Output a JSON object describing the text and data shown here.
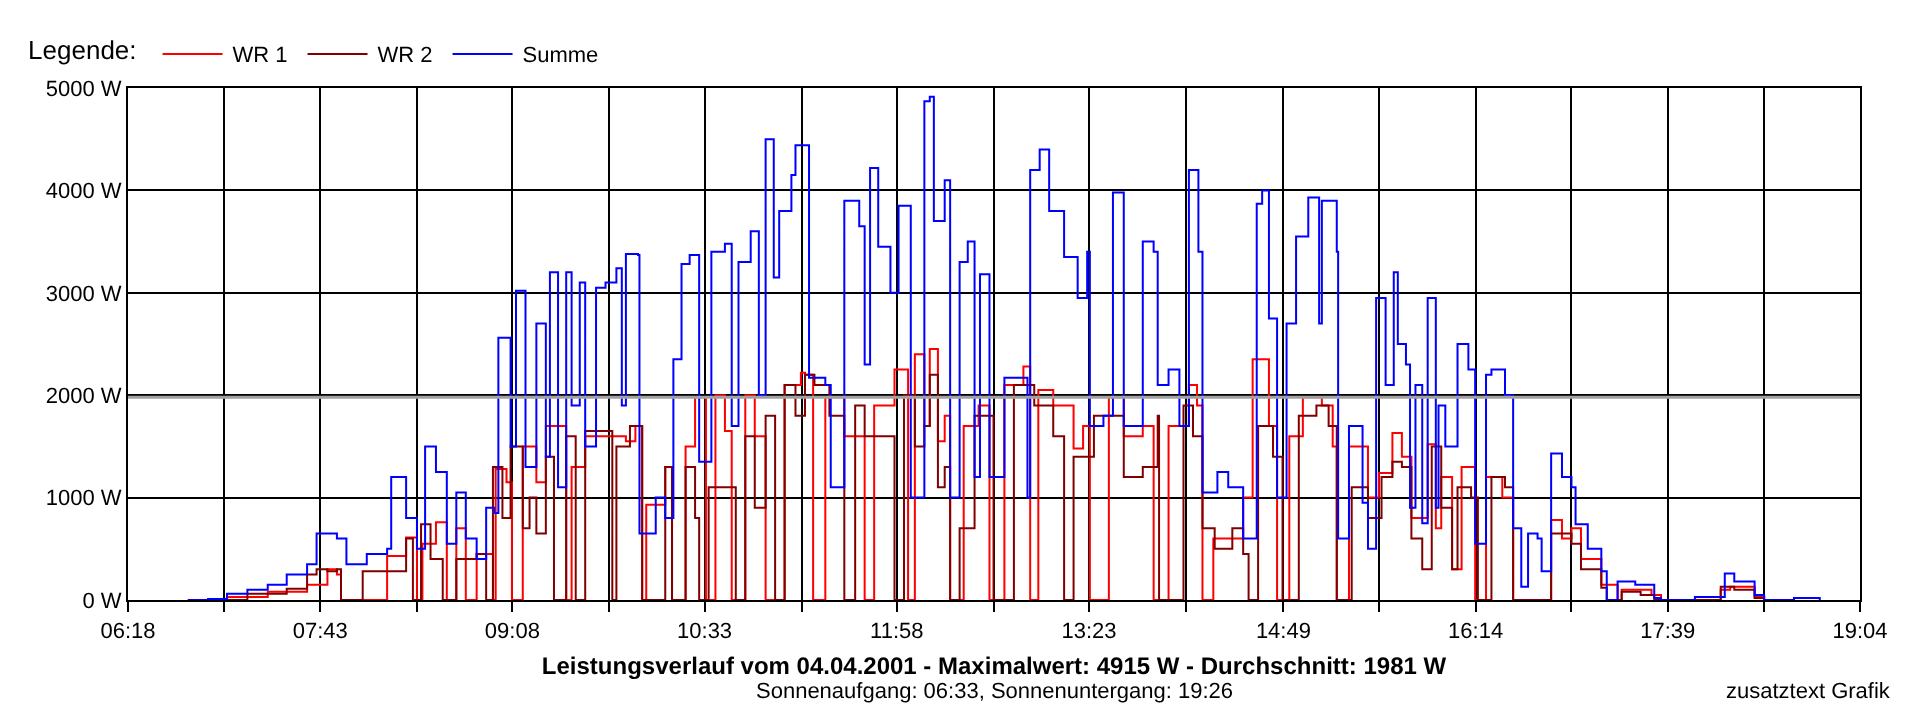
{
  "chart_data": {
    "type": "step",
    "title": "Leistungsverlauf vom 04.04.2001 - Maximalwert: 4915 W - Durchschnitt: 1981 W",
    "subtitle": "Sonnenaufgang: 06:33, Sonnenuntergang: 19:26",
    "legend_title": "Legende:",
    "annotations": [
      "zusatztext Grafik"
    ],
    "xlim": [
      6.3,
      19.0667
    ],
    "xticks": [
      {
        "value": 6.3,
        "label": "06:18"
      },
      {
        "value": 7.0093,
        "label": null
      },
      {
        "value": 7.7167,
        "label": "07:43"
      },
      {
        "value": 8.4278,
        "label": null
      },
      {
        "value": 9.1333,
        "label": "09:08"
      },
      {
        "value": 9.8463,
        "label": null
      },
      {
        "value": 10.55,
        "label": "10:33"
      },
      {
        "value": 11.2648,
        "label": null
      },
      {
        "value": 11.9667,
        "label": "11:58"
      },
      {
        "value": 12.6833,
        "label": null
      },
      {
        "value": 13.3833,
        "label": "13:23"
      },
      {
        "value": 14.1019,
        "label": null
      },
      {
        "value": 14.8167,
        "label": "14:49"
      },
      {
        "value": 15.5204,
        "label": null
      },
      {
        "value": 16.2333,
        "label": "16:14"
      },
      {
        "value": 16.9389,
        "label": null
      },
      {
        "value": 17.65,
        "label": "17:39"
      },
      {
        "value": 18.3574,
        "label": null
      },
      {
        "value": 19.0667,
        "label": "19:04"
      }
    ],
    "ylim": [
      0,
      5000
    ],
    "yticks": [
      {
        "value": 0,
        "label": "0 W"
      },
      {
        "value": 1000,
        "label": "1000 W"
      },
      {
        "value": 2000,
        "label": "2000 W"
      },
      {
        "value": 3000,
        "label": "3000 W"
      },
      {
        "value": 4000,
        "label": "4000 W"
      },
      {
        "value": 5000,
        "label": "5000 W"
      }
    ],
    "grid": true,
    "legend": "top left",
    "marker": "none",
    "line_style": "solid",
    "ref_lines": [
      {
        "axis": "y",
        "value": 1981,
        "color": "#a0a0a0"
      }
    ],
    "series": [
      {
        "name": "WR 1",
        "color": "#ff0000",
        "x": [
          6.81,
          7.03,
          7.33,
          7.62,
          7.77,
          7.84,
          7.87,
          8.21,
          8.35,
          8.43,
          8.47,
          8.57,
          8.65,
          8.72,
          8.79,
          8.87,
          8.99,
          9.01,
          9.09,
          9.13,
          9.21,
          9.31,
          9.38,
          9.45,
          9.53,
          9.57,
          9.67,
          9.82,
          9.97,
          10.04,
          10.09,
          10.12,
          10.26,
          10.31,
          10.41,
          10.48,
          10.56,
          10.63,
          10.7,
          10.75,
          10.85,
          10.92,
          11.0,
          11.14,
          11.26,
          11.29,
          11.35,
          11.44,
          11.58,
          11.73,
          11.8,
          11.95,
          12.05,
          12.1,
          12.17,
          12.21,
          12.27,
          12.32,
          12.36,
          12.46,
          12.57,
          12.65,
          12.76,
          12.9,
          12.95,
          13.01,
          13.12,
          13.27,
          13.34,
          13.39,
          13.53,
          13.64,
          13.78,
          13.86,
          13.97,
          14.12,
          14.18,
          14.22,
          14.3,
          14.41,
          14.52,
          14.59,
          14.71,
          14.77,
          14.86,
          14.96,
          15.1,
          15.18,
          15.21,
          15.3,
          15.44,
          15.52,
          15.62,
          15.69,
          15.76,
          15.88,
          15.94,
          15.98,
          16.06,
          16.13,
          16.23,
          16.31,
          16.43,
          16.5,
          16.51,
          16.76,
          16.79,
          16.87,
          16.94,
          17.01,
          17.16,
          17.28,
          17.31,
          17.53,
          17.6,
          18.04,
          18.11,
          18.29,
          18.36
        ],
        "values": [
          0,
          30,
          80,
          150,
          300,
          250,
          0,
          430,
          610,
          0,
          550,
          760,
          0,
          700,
          0,
          450,
          0,
          1280,
          1150,
          0,
          1500,
          1150,
          1700,
          1700,
          0,
          1300,
          1600,
          1600,
          1550,
          1700,
          0,
          930,
          1300,
          0,
          1500,
          1980,
          0,
          2000,
          1650,
          0,
          2000,
          1600,
          0,
          2100,
          2220,
          2200,
          0,
          1980,
          1600,
          0,
          1900,
          2250,
          0,
          2400,
          1700,
          2450,
          1550,
          1800,
          0,
          1700,
          1900,
          0,
          2100,
          2280,
          0,
          2050,
          1900,
          1480,
          1700,
          0,
          1980,
          1600,
          1700,
          0,
          1700,
          2100,
          1900,
          0,
          600,
          600,
          1000,
          2350,
          1700,
          0,
          1600,
          1980,
          1900,
          1500,
          0,
          1500,
          1000,
          1240,
          1630,
          1400,
          800,
          1520,
          700,
          1200,
          300,
          1300,
          0,
          1200,
          1000,
          1000,
          0,
          0,
          780,
          600,
          700,
          400,
          150,
          0,
          100,
          50,
          0,
          100,
          130,
          30,
          0
        ]
      },
      {
        "name": "WR 2",
        "color": "#800000",
        "x": [
          6.89,
          7.18,
          7.47,
          7.62,
          7.69,
          7.77,
          7.84,
          7.87,
          8.03,
          8.35,
          8.4,
          8.46,
          8.53,
          8.62,
          8.72,
          8.87,
          8.94,
          8.99,
          9.06,
          9.12,
          9.21,
          9.26,
          9.31,
          9.38,
          9.44,
          9.53,
          9.6,
          9.67,
          9.82,
          9.87,
          9.9,
          10.0,
          10.09,
          10.26,
          10.31,
          10.41,
          10.48,
          10.51,
          10.58,
          10.7,
          10.78,
          10.85,
          10.92,
          11.0,
          11.07,
          11.14,
          11.22,
          11.29,
          11.36,
          11.47,
          11.58,
          11.66,
          11.73,
          11.88,
          11.95,
          12.02,
          12.1,
          12.17,
          12.21,
          12.27,
          12.32,
          12.36,
          12.43,
          12.54,
          12.64,
          12.68,
          12.83,
          12.98,
          13.12,
          13.2,
          13.27,
          13.42,
          13.53,
          13.64,
          13.78,
          13.89,
          13.9,
          14.08,
          14.15,
          14.22,
          14.31,
          14.44,
          14.52,
          14.56,
          14.63,
          14.74,
          14.81,
          14.93,
          15.06,
          15.15,
          15.21,
          15.32,
          15.44,
          15.54,
          15.62,
          15.69,
          15.76,
          15.84,
          15.91,
          15.98,
          16.06,
          16.1,
          16.2,
          16.25,
          16.35,
          16.45,
          16.51,
          16.79,
          16.94,
          17.01,
          17.16,
          17.2,
          17.31,
          17.45,
          17.55,
          18.04,
          18.14,
          18.29,
          18.36
        ],
        "values": [
          0,
          60,
          110,
          250,
          300,
          280,
          300,
          0,
          280,
          600,
          0,
          740,
          400,
          0,
          400,
          450,
          0,
          1300,
          800,
          1500,
          700,
          1000,
          650,
          1400,
          0,
          1600,
          0,
          1650,
          1650,
          0,
          1500,
          1700,
          0,
          1300,
          0,
          1300,
          800,
          0,
          1100,
          1100,
          0,
          1600,
          900,
          1800,
          0,
          2100,
          1800,
          2200,
          2100,
          1800,
          0,
          1900,
          1600,
          1600,
          0,
          2000,
          1500,
          1700,
          2200,
          1100,
          1300,
          0,
          700,
          1800,
          1800,
          0,
          2100,
          1900,
          1600,
          0,
          1400,
          1800,
          1800,
          1200,
          1300,
          1800,
          0,
          1900,
          1600,
          700,
          500,
          700,
          450,
          0,
          1700,
          1400,
          0,
          1800,
          1900,
          1700,
          0,
          1100,
          800,
          1200,
          1350,
          1300,
          600,
          300,
          1500,
          900,
          300,
          1100,
          1000,
          0,
          1200,
          1100,
          0,
          650,
          550,
          300,
          120,
          0,
          80,
          50,
          0,
          130,
          100,
          20,
          0
        ]
      },
      {
        "name": "Summe",
        "color": "#0000ff",
        "x": [
          6.74,
          6.89,
          7.03,
          7.18,
          7.33,
          7.47,
          7.62,
          7.69,
          7.84,
          7.91,
          8.06,
          8.21,
          8.24,
          8.35,
          8.43,
          8.49,
          8.57,
          8.65,
          8.72,
          8.79,
          8.87,
          8.94,
          9.0,
          9.03,
          9.12,
          9.16,
          9.23,
          9.31,
          9.38,
          9.41,
          9.47,
          9.53,
          9.57,
          9.63,
          9.67,
          9.75,
          9.82,
          9.9,
          9.94,
          9.97,
          10.06,
          10.07,
          10.12,
          10.19,
          10.26,
          10.32,
          10.38,
          10.44,
          10.51,
          10.6,
          10.7,
          10.75,
          10.8,
          10.89,
          10.95,
          11.0,
          11.06,
          11.1,
          11.19,
          11.22,
          11.29,
          11.32,
          11.44,
          11.48,
          11.58,
          11.69,
          11.73,
          11.77,
          11.83,
          11.92,
          11.98,
          12.07,
          12.17,
          12.21,
          12.24,
          12.32,
          12.36,
          12.43,
          12.49,
          12.54,
          12.58,
          12.64,
          12.65,
          12.76,
          12.86,
          12.93,
          12.95,
          13.02,
          13.09,
          13.2,
          13.3,
          13.37,
          13.39,
          13.49,
          13.56,
          13.64,
          13.78,
          13.86,
          13.89,
          13.97,
          14.05,
          14.12,
          14.19,
          14.22,
          14.33,
          14.41,
          14.52,
          14.62,
          14.66,
          14.71,
          14.77,
          14.84,
          14.91,
          15.0,
          15.08,
          15.1,
          15.21,
          15.22,
          15.3,
          15.4,
          15.44,
          15.5,
          15.57,
          15.63,
          15.66,
          15.72,
          15.75,
          15.79,
          15.84,
          15.88,
          15.94,
          15.96,
          16.01,
          16.09,
          16.1,
          16.18,
          16.23,
          16.31,
          16.35,
          16.45,
          16.51,
          16.57,
          16.62,
          16.69,
          16.72,
          16.79,
          16.87,
          16.94,
          16.97,
          17.06,
          17.16,
          17.2,
          17.28,
          17.41,
          17.55,
          17.6,
          17.85,
          17.99,
          18.07,
          18.14,
          18.29,
          18.36,
          18.58,
          18.73,
          18.77
        ],
        "values": [
          0,
          10,
          60,
          100,
          150,
          250,
          350,
          650,
          600,
          350,
          450,
          500,
          1200,
          800,
          500,
          1500,
          1250,
          550,
          1050,
          600,
          400,
          900,
          850,
          2560,
          1500,
          3020,
          1300,
          2700,
          1400,
          3200,
          1100,
          3200,
          1900,
          3100,
          1500,
          3050,
          3100,
          3240,
          1900,
          3380,
          3370,
          650,
          650,
          1000,
          800,
          2350,
          3280,
          3370,
          1350,
          3400,
          3480,
          1700,
          3300,
          3600,
          2000,
          4500,
          3150,
          3800,
          4150,
          4440,
          4440,
          2170,
          2100,
          1100,
          3900,
          3650,
          2300,
          4220,
          3450,
          3000,
          3850,
          1000,
          4870,
          4915,
          3700,
          4100,
          1000,
          3300,
          3500,
          1200,
          3180,
          3180,
          1200,
          2170,
          2170,
          1000,
          4200,
          4400,
          3800,
          3350,
          2950,
          3400,
          1700,
          1800,
          3980,
          1700,
          3500,
          3400,
          2100,
          2250,
          1700,
          4200,
          3400,
          1050,
          1250,
          1100,
          600,
          3870,
          4000,
          2750,
          1000,
          2700,
          3550,
          3930,
          2700,
          3900,
          3400,
          600,
          1700,
          950,
          500,
          2950,
          2100,
          3200,
          2500,
          2300,
          900,
          2100,
          750,
          2950,
          900,
          1900,
          1500,
          1500,
          2500,
          2250,
          550,
          2200,
          2250,
          2000,
          700,
          130,
          650,
          600,
          280,
          1430,
          1200,
          1100,
          740,
          500,
          280,
          0,
          180,
          150,
          20,
          0,
          30,
          30,
          260,
          180,
          50,
          0,
          20,
          20,
          0
        ]
      }
    ]
  }
}
